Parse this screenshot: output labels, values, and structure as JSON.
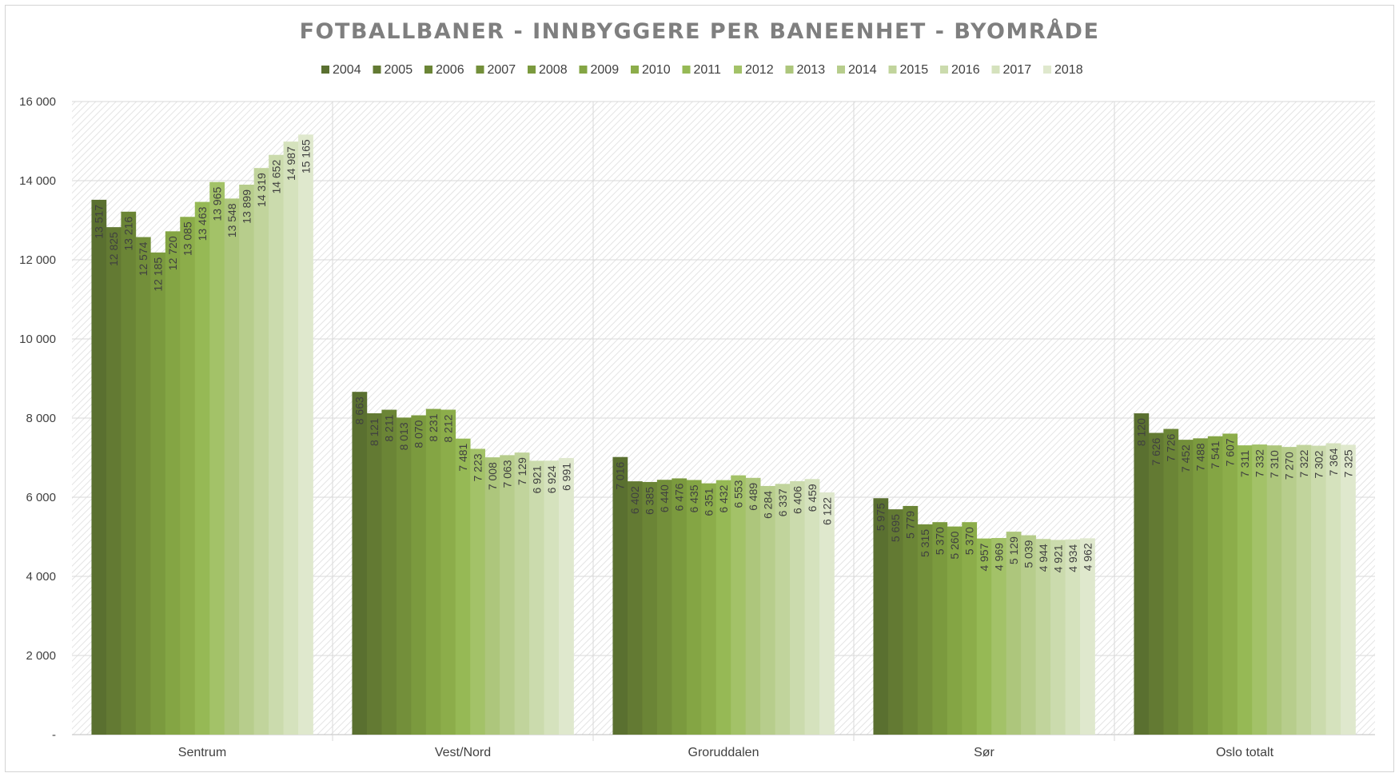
{
  "chart_data": {
    "type": "bar",
    "title": "FOTBALLBANER - INNBYGGERE PER BANEENHET - BYOMRÅDE",
    "xlabel": "",
    "ylabel": "",
    "ylim": [
      0,
      16000
    ],
    "yticks": [
      0,
      2000,
      4000,
      6000,
      8000,
      10000,
      12000,
      14000,
      16000
    ],
    "ytick_labels": [
      "-",
      "2 000",
      "4 000",
      "6 000",
      "8 000",
      "10 000",
      "12 000",
      "14 000",
      "16 000"
    ],
    "grid": true,
    "legend_position": "top",
    "categories": [
      "Sentrum",
      "Vest/Nord",
      "Groruddalen",
      "Sør",
      "Oslo totalt"
    ],
    "series": [
      {
        "name": "2004",
        "color": "#5a7030",
        "values": [
          13517,
          8663,
          7016,
          5975,
          8120
        ]
      },
      {
        "name": "2005",
        "color": "#637a33",
        "values": [
          12825,
          8121,
          6402,
          5695,
          7626
        ]
      },
      {
        "name": "2006",
        "color": "#6b8536",
        "values": [
          13216,
          8211,
          6385,
          5779,
          7726
        ]
      },
      {
        "name": "2007",
        "color": "#738f3a",
        "values": [
          12574,
          8013,
          6440,
          5315,
          7452
        ]
      },
      {
        "name": "2008",
        "color": "#7b9a3e",
        "values": [
          12185,
          8070,
          6476,
          5370,
          7488
        ]
      },
      {
        "name": "2009",
        "color": "#84a544",
        "values": [
          12720,
          8231,
          6435,
          5260,
          7541
        ]
      },
      {
        "name": "2010",
        "color": "#8cad4a",
        "values": [
          13085,
          8212,
          6351,
          5370,
          7607
        ]
      },
      {
        "name": "2011",
        "color": "#96b955",
        "values": [
          13463,
          7481,
          6432,
          4957,
          7311
        ]
      },
      {
        "name": "2012",
        "color": "#a3c268",
        "values": [
          13965,
          7223,
          6553,
          4969,
          7332
        ]
      },
      {
        "name": "2013",
        "color": "#adc67c",
        "values": [
          13548,
          7008,
          6489,
          5129,
          7310
        ]
      },
      {
        "name": "2014",
        "color": "#b7cd8c",
        "values": [
          13899,
          7063,
          6284,
          5039,
          7270
        ]
      },
      {
        "name": "2015",
        "color": "#c1d49c",
        "values": [
          14319,
          7129,
          6337,
          4944,
          7322
        ]
      },
      {
        "name": "2016",
        "color": "#cbdbad",
        "values": [
          14652,
          6921,
          6406,
          4921,
          7302
        ]
      },
      {
        "name": "2017",
        "color": "#d5e2bd",
        "values": [
          14987,
          6924,
          6459,
          4934,
          7364
        ]
      },
      {
        "name": "2018",
        "color": "#dfe8cd",
        "values": [
          15165,
          6991,
          6122,
          4962,
          7325
        ]
      }
    ],
    "data_labels_omitted_for_first_year": true
  }
}
